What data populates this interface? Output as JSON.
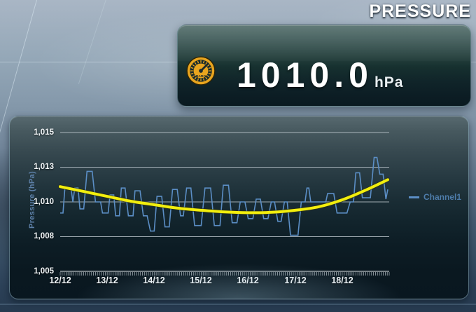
{
  "title": "PRESSURE",
  "gauge_panel": {
    "value": "1010.0",
    "unit": "hPa",
    "icon": "barometer-gauge-icon",
    "icon_label": "BARO",
    "icon_color": "#E9A51E"
  },
  "chart_data": {
    "type": "line",
    "title": "",
    "xlabel": "",
    "ylabel": "Pressure (hPa)",
    "ylim": [
      1005,
      1015
    ],
    "xlim_days": [
      0,
      7
    ],
    "grid": true,
    "ytick_labels": [
      "1,015",
      "1,013",
      "1,010",
      "1,008",
      "1,005"
    ],
    "ytick_values": [
      1015,
      1012.5,
      1010,
      1007.5,
      1005
    ],
    "xtick_labels": [
      "12/12",
      "13/12",
      "14/12",
      "15/12",
      "16/12",
      "17/12",
      "18/12"
    ],
    "xtick_days": [
      0,
      1,
      2,
      3,
      4,
      5,
      6
    ],
    "minor_ticks_per_day": 24,
    "legend": {
      "position": "right",
      "entries": [
        {
          "label": "Channel1",
          "color": "#5b8ec5"
        }
      ]
    },
    "series": [
      {
        "name": "Channel1",
        "color": "#5b8ec5",
        "width": 1.6,
        "smooth": false,
        "points": [
          [
            0.0,
            1009.2
          ],
          [
            0.06,
            1009.2
          ],
          [
            0.1,
            1011.0
          ],
          [
            0.23,
            1011.0
          ],
          [
            0.27,
            1010.0
          ],
          [
            0.31,
            1011.0
          ],
          [
            0.38,
            1011.0
          ],
          [
            0.42,
            1009.5
          ],
          [
            0.5,
            1009.5
          ],
          [
            0.57,
            1012.2
          ],
          [
            0.68,
            1012.2
          ],
          [
            0.75,
            1010.0
          ],
          [
            0.86,
            1010.0
          ],
          [
            0.9,
            1009.2
          ],
          [
            1.02,
            1009.2
          ],
          [
            1.06,
            1010.5
          ],
          [
            1.14,
            1010.5
          ],
          [
            1.18,
            1009.0
          ],
          [
            1.26,
            1009.0
          ],
          [
            1.3,
            1011.0
          ],
          [
            1.38,
            1011.0
          ],
          [
            1.45,
            1009.0
          ],
          [
            1.55,
            1009.0
          ],
          [
            1.59,
            1010.8
          ],
          [
            1.7,
            1010.8
          ],
          [
            1.77,
            1009.0
          ],
          [
            1.85,
            1009.0
          ],
          [
            1.92,
            1007.9
          ],
          [
            2.0,
            1007.9
          ],
          [
            2.06,
            1010.4
          ],
          [
            2.16,
            1010.4
          ],
          [
            2.23,
            1008.2
          ],
          [
            2.32,
            1008.2
          ],
          [
            2.39,
            1010.9
          ],
          [
            2.49,
            1010.9
          ],
          [
            2.56,
            1009.0
          ],
          [
            2.62,
            1009.0
          ],
          [
            2.69,
            1011.0
          ],
          [
            2.78,
            1011.0
          ],
          [
            2.86,
            1008.3
          ],
          [
            3.0,
            1008.3
          ],
          [
            3.08,
            1011.0
          ],
          [
            3.2,
            1011.0
          ],
          [
            3.28,
            1008.3
          ],
          [
            3.4,
            1008.3
          ],
          [
            3.47,
            1011.2
          ],
          [
            3.58,
            1011.2
          ],
          [
            3.66,
            1008.5
          ],
          [
            3.76,
            1008.5
          ],
          [
            3.83,
            1010.0
          ],
          [
            3.93,
            1010.0
          ],
          [
            4.0,
            1008.8
          ],
          [
            4.1,
            1008.8
          ],
          [
            4.17,
            1010.2
          ],
          [
            4.26,
            1010.2
          ],
          [
            4.33,
            1008.8
          ],
          [
            4.42,
            1008.8
          ],
          [
            4.49,
            1010.0
          ],
          [
            4.56,
            1010.0
          ],
          [
            4.63,
            1008.6
          ],
          [
            4.7,
            1008.6
          ],
          [
            4.77,
            1010.0
          ],
          [
            4.83,
            1010.0
          ],
          [
            4.9,
            1007.6
          ],
          [
            5.06,
            1007.6
          ],
          [
            5.13,
            1010.0
          ],
          [
            5.21,
            1010.0
          ],
          [
            5.25,
            1011.0
          ],
          [
            5.29,
            1011.0
          ],
          [
            5.33,
            1010.0
          ],
          [
            5.65,
            1010.0
          ],
          [
            5.69,
            1010.6
          ],
          [
            5.82,
            1010.6
          ],
          [
            5.89,
            1009.2
          ],
          [
            6.1,
            1009.2
          ],
          [
            6.17,
            1010.0
          ],
          [
            6.24,
            1010.0
          ],
          [
            6.29,
            1012.1
          ],
          [
            6.37,
            1012.1
          ],
          [
            6.43,
            1010.3
          ],
          [
            6.6,
            1010.3
          ],
          [
            6.68,
            1013.2
          ],
          [
            6.74,
            1013.2
          ],
          [
            6.8,
            1012.0
          ],
          [
            6.87,
            1012.0
          ],
          [
            6.93,
            1010.2
          ],
          [
            6.97,
            1010.9
          ]
        ]
      },
      {
        "name": "trend",
        "color": "#f2ee0d",
        "width": 4,
        "smooth": true,
        "points": [
          [
            0.0,
            1011.1
          ],
          [
            0.5,
            1010.75
          ],
          [
            1.0,
            1010.4
          ],
          [
            1.5,
            1010.05
          ],
          [
            2.0,
            1009.8
          ],
          [
            2.5,
            1009.55
          ],
          [
            3.0,
            1009.4
          ],
          [
            3.5,
            1009.28
          ],
          [
            4.0,
            1009.22
          ],
          [
            4.5,
            1009.25
          ],
          [
            5.0,
            1009.4
          ],
          [
            5.5,
            1009.65
          ],
          [
            6.0,
            1010.15
          ],
          [
            6.5,
            1010.85
          ],
          [
            6.97,
            1011.6
          ]
        ]
      }
    ]
  },
  "colors": {
    "accent_amber": "#E9A51E",
    "series_blue": "#5b8ec5",
    "trend_yellow": "#f2ee0d",
    "gridline": "#cdd6dc"
  }
}
